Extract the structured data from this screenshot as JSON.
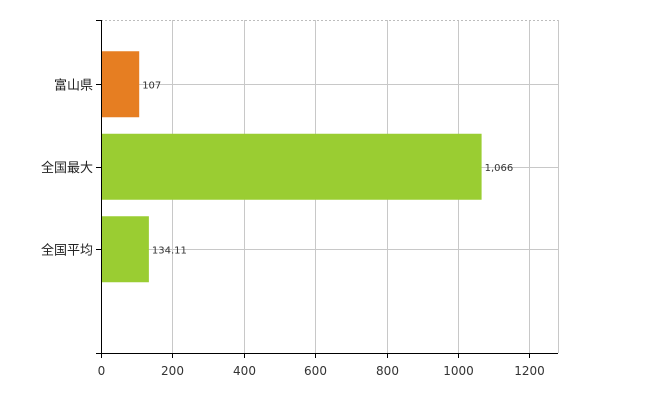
{
  "chart_data": {
    "type": "bar",
    "orientation": "horizontal",
    "categories": [
      "富山県",
      "全国最大",
      "全国平均"
    ],
    "values": [
      107,
      1066,
      134.11
    ],
    "value_labels": [
      "107",
      "1,066",
      "134.11"
    ],
    "bar_colors": [
      "#e67e22",
      "#9acd32",
      "#9acd32"
    ],
    "title": "",
    "xlabel": "",
    "ylabel": "",
    "xlim": [
      0,
      1280
    ],
    "x_ticks": [
      0,
      200,
      400,
      600,
      800,
      1000,
      1200
    ],
    "grid": true,
    "legend": "none"
  }
}
